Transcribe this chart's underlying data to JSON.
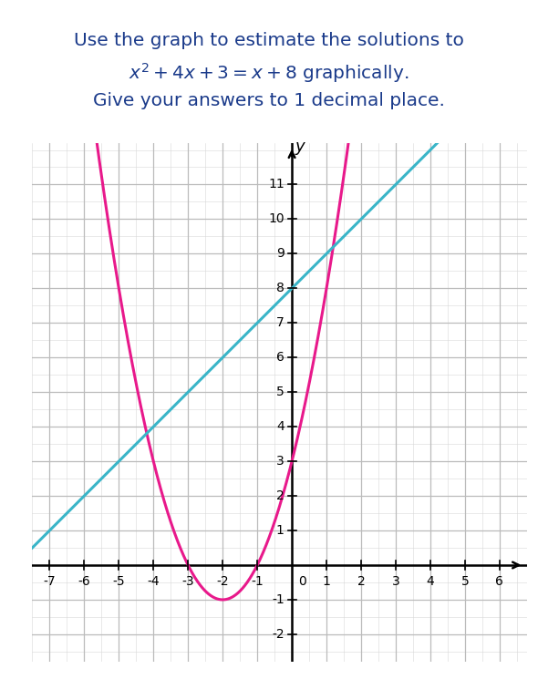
{
  "title_line1": "Use the graph to estimate the solutions to",
  "title_line2": "$x^2 + 4x + 3 = x + 8$ graphically.",
  "title_line3": "Give your answers to 1 decimal place.",
  "title_color": "#1a3a8a",
  "parabola_color": "#e8198b",
  "line_color": "#3ab5c8",
  "background_color": "#ffffff",
  "grid_minor_color": "#d8d8d8",
  "grid_major_color": "#bbbbbb",
  "axis_color": "#000000",
  "xlim": [
    -7.5,
    6.8
  ],
  "ylim": [
    -2.8,
    12.2
  ],
  "xmin": -7,
  "xmax": 6,
  "ymin": -2,
  "ymax": 11,
  "xticks": [
    -7,
    -6,
    -5,
    -4,
    -3,
    -2,
    -1,
    1,
    2,
    3,
    4,
    5,
    6
  ],
  "yticks": [
    -2,
    -1,
    1,
    2,
    3,
    4,
    5,
    6,
    7,
    8,
    9,
    10,
    11
  ],
  "ylabel": "y",
  "figsize": [
    5.9,
    7.68
  ],
  "dpi": 100
}
